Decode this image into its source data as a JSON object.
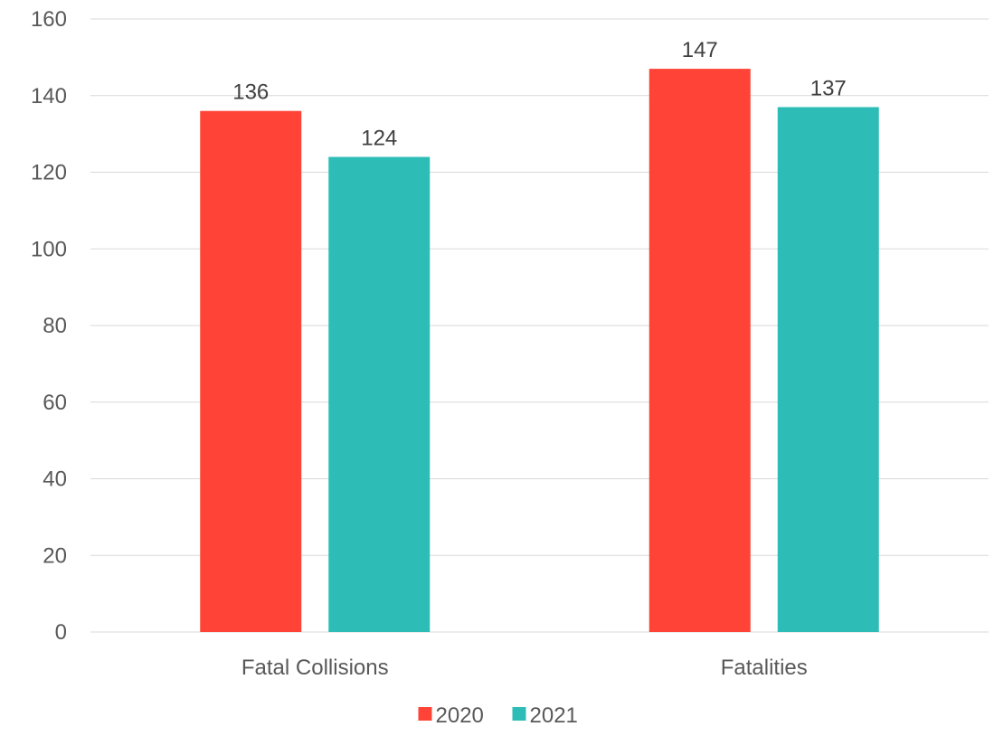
{
  "chart_data": {
    "type": "bar",
    "title": "",
    "xlabel": "",
    "ylabel": "",
    "categories": [
      "Fatal Collisions",
      "Fatalities"
    ],
    "series": [
      {
        "name": "2020",
        "values": [
          136,
          147
        ],
        "color": "#FF4437"
      },
      {
        "name": "2021",
        "values": [
          124,
          137
        ],
        "color": "#2EBDB6"
      }
    ],
    "ylim": [
      0,
      160
    ],
    "yticks": [
      "0",
      "20",
      "40",
      "60",
      "80",
      "100",
      "120",
      "140",
      "160"
    ],
    "grid": true,
    "legend_position": "bottom",
    "data_labels": true
  }
}
